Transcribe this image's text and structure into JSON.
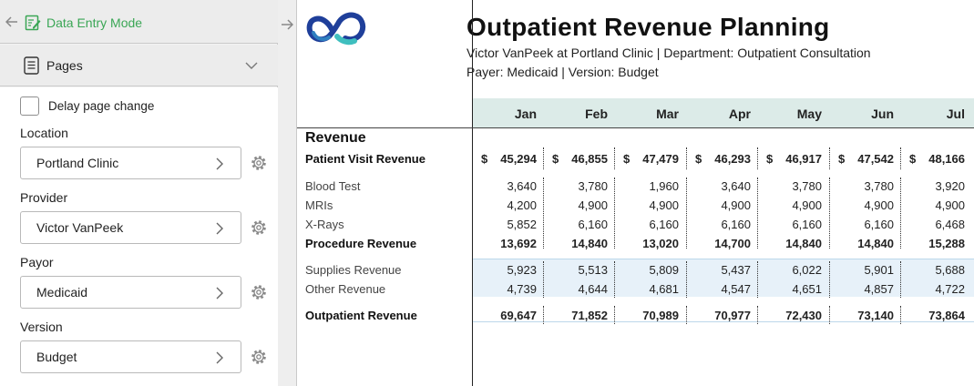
{
  "left_panel": {
    "mode_label": "Data Entry Mode",
    "pages_label": "Pages",
    "delay_label": "Delay page change",
    "fields": [
      {
        "label": "Location",
        "value": "Portland Clinic"
      },
      {
        "label": "Provider",
        "value": "Victor VanPeek"
      },
      {
        "label": "Payor",
        "value": "Medicaid"
      },
      {
        "label": "Version",
        "value": "Budget"
      }
    ]
  },
  "report": {
    "title": "Outpatient Revenue Planning",
    "subtitle1": "Victor VanPeek at Portland Clinic | Department: Outpatient Consultation",
    "subtitle2": "Payer: Medicaid | Version: Budget",
    "section_label": "Revenue",
    "months": [
      "Jan",
      "Feb",
      "Mar",
      "Apr",
      "May",
      "Jun",
      "Jul"
    ],
    "currency_symbol": "$",
    "rows": [
      {
        "label": "Patient Visit Revenue",
        "style": "money",
        "values": [
          "45,294",
          "46,855",
          "47,479",
          "46,293",
          "46,917",
          "47,542",
          "48,166"
        ]
      },
      {
        "label": "Blood Test",
        "style": "normal",
        "values": [
          "3,640",
          "3,780",
          "1,960",
          "3,640",
          "3,780",
          "3,780",
          "3,920"
        ]
      },
      {
        "label": "MRIs",
        "style": "normal",
        "values": [
          "4,200",
          "4,900",
          "4,900",
          "4,900",
          "4,900",
          "4,900",
          "4,900"
        ]
      },
      {
        "label": "X-Rays",
        "style": "normal",
        "values": [
          "5,852",
          "6,160",
          "6,160",
          "6,160",
          "6,160",
          "6,160",
          "6,468"
        ]
      },
      {
        "label": "Procedure Revenue",
        "style": "bold",
        "values": [
          "13,692",
          "14,840",
          "13,020",
          "14,700",
          "14,840",
          "14,840",
          "15,288"
        ]
      },
      {
        "label": "Supplies Revenue",
        "style": "normal",
        "values": [
          "5,923",
          "5,513",
          "5,809",
          "5,437",
          "6,022",
          "5,901",
          "5,688"
        ]
      },
      {
        "label": "Other Revenue",
        "style": "normal",
        "values": [
          "4,739",
          "4,644",
          "4,681",
          "4,547",
          "4,651",
          "4,857",
          "4,722"
        ]
      },
      {
        "label": "Outpatient Revenue",
        "style": "bold",
        "values": [
          "69,647",
          "71,852",
          "70,989",
          "70,977",
          "72,430",
          "73,140",
          "73,864"
        ]
      }
    ]
  },
  "colors": {
    "accent_green": "#3aa655",
    "month_band": "#dcebe8",
    "highlight_band": "#e7f1f9",
    "logo_dark": "#1f3f9a",
    "logo_teal": "#3fbfbf"
  },
  "icons": {
    "back": "arrow-left-icon",
    "mode": "data-entry-icon",
    "pages": "document-icon",
    "expand": "chevron-down-icon",
    "select": "chevron-right-icon",
    "settings": "gear-icon",
    "collapse": "arrow-right-icon"
  }
}
